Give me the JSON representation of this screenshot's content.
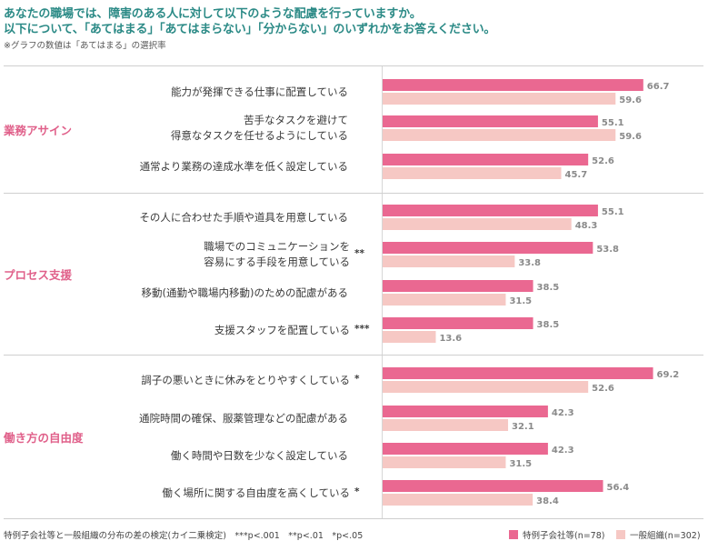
{
  "title_line1": "あなたの職場では、障害のある人に対して以下のような配慮を行っていますか。",
  "title_line2": "以下について、「あてはまる」「あてはまらない」「分からない」のいずれかをお答えください。",
  "note": "※グラフの数値は「あてはまる」の選択率",
  "footnote": "特例子会社等と一般組織の分布の差の検定(カイ二乗検定)　***p<.001　**p<.01　*p<.05",
  "colors": {
    "series1": "#ea6891",
    "series2": "#f6c8c4",
    "section": "#e0608a",
    "title": "#2b8a86"
  },
  "chart_data": {
    "type": "bar",
    "orientation": "horizontal",
    "xlim": [
      0,
      100
    ],
    "legend_position": "bottom-right",
    "series": [
      {
        "name": "特例子会社等(n=78)"
      },
      {
        "name": "一般組織(n=302)"
      }
    ],
    "sections": [
      {
        "label": "業務アサイン",
        "items": [
          {
            "label": [
              "能力が発揮できる仕事に配置している"
            ],
            "sig": "",
            "values": [
              66.7,
              59.6
            ]
          },
          {
            "label": [
              "苦手なタスクを避けて",
              "得意なタスクを任せるようにしている"
            ],
            "sig": "",
            "values": [
              55.1,
              59.6
            ]
          },
          {
            "label": [
              "通常より業務の達成水準を低く設定している"
            ],
            "sig": "",
            "values": [
              52.6,
              45.7
            ]
          }
        ]
      },
      {
        "label": "プロセス支援",
        "items": [
          {
            "label": [
              "その人に合わせた手順や道具を用意している"
            ],
            "sig": "",
            "values": [
              55.1,
              48.3
            ]
          },
          {
            "label": [
              "職場でのコミュニケーションを",
              "容易にする手段を用意している"
            ],
            "sig": "**",
            "values": [
              53.8,
              33.8
            ]
          },
          {
            "label": [
              "移動(通勤や職場内移動)のための配慮がある"
            ],
            "sig": "",
            "values": [
              38.5,
              31.5
            ]
          },
          {
            "label": [
              "支援スタッフを配置している"
            ],
            "sig": "***",
            "values": [
              38.5,
              13.6
            ]
          }
        ]
      },
      {
        "label": "働き方の自由度",
        "items": [
          {
            "label": [
              "調子の悪いときに休みをとりやすくしている"
            ],
            "sig": "*",
            "values": [
              69.2,
              52.6
            ]
          },
          {
            "label": [
              "通院時間の確保、服薬管理などの配慮がある"
            ],
            "sig": "",
            "values": [
              42.3,
              32.1
            ]
          },
          {
            "label": [
              "働く時間や日数を少なく設定している"
            ],
            "sig": "",
            "values": [
              42.3,
              31.5
            ]
          },
          {
            "label": [
              "働く場所に関する自由度を高くしている"
            ],
            "sig": "*",
            "values": [
              56.4,
              38.4
            ]
          }
        ]
      }
    ]
  }
}
